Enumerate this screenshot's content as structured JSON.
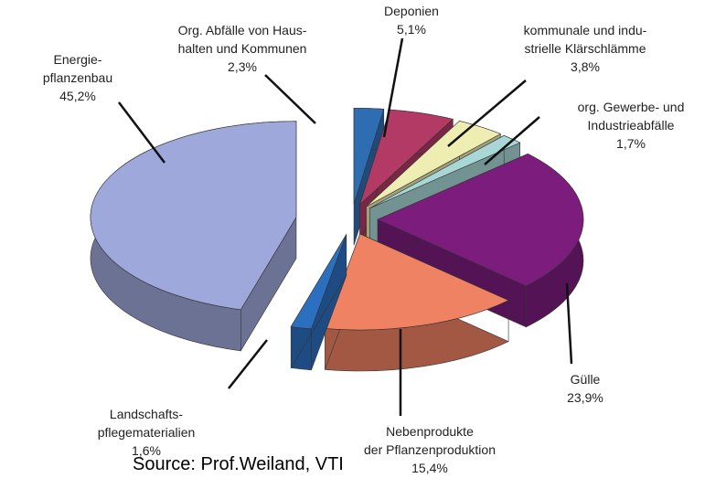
{
  "chart_data": {
    "type": "pie",
    "categories": [
      "Org. Abfälle von Haus-\nhalten und Kommunen",
      "Deponien",
      "kommunale und indu-\nstrielle Klärschlämme",
      "org. Gewerbe- und\nIndustrieabfälle",
      "Gülle",
      "Nebenprodukte\nder Pflanzenproduktion",
      "Landschafts-\npflegematerialien",
      "Energie-\npflanzenbau"
    ],
    "values": [
      2.3,
      5.1,
      3.8,
      1.7,
      23.9,
      15.4,
      1.6,
      45.2
    ],
    "value_labels": [
      "2,3%",
      "5,1%",
      "3,8%",
      "1,7%",
      "23,9%",
      "15,4%",
      "1,6%",
      "45,2%"
    ],
    "colors": [
      "#2f6db3",
      "#b23a64",
      "#eeeeb2",
      "#a9d6d6",
      "#7c1c7c",
      "#ef8263",
      "#2b6fbf",
      "#9ea8da"
    ],
    "source": "Source: Prof.Weiland, VTI"
  }
}
